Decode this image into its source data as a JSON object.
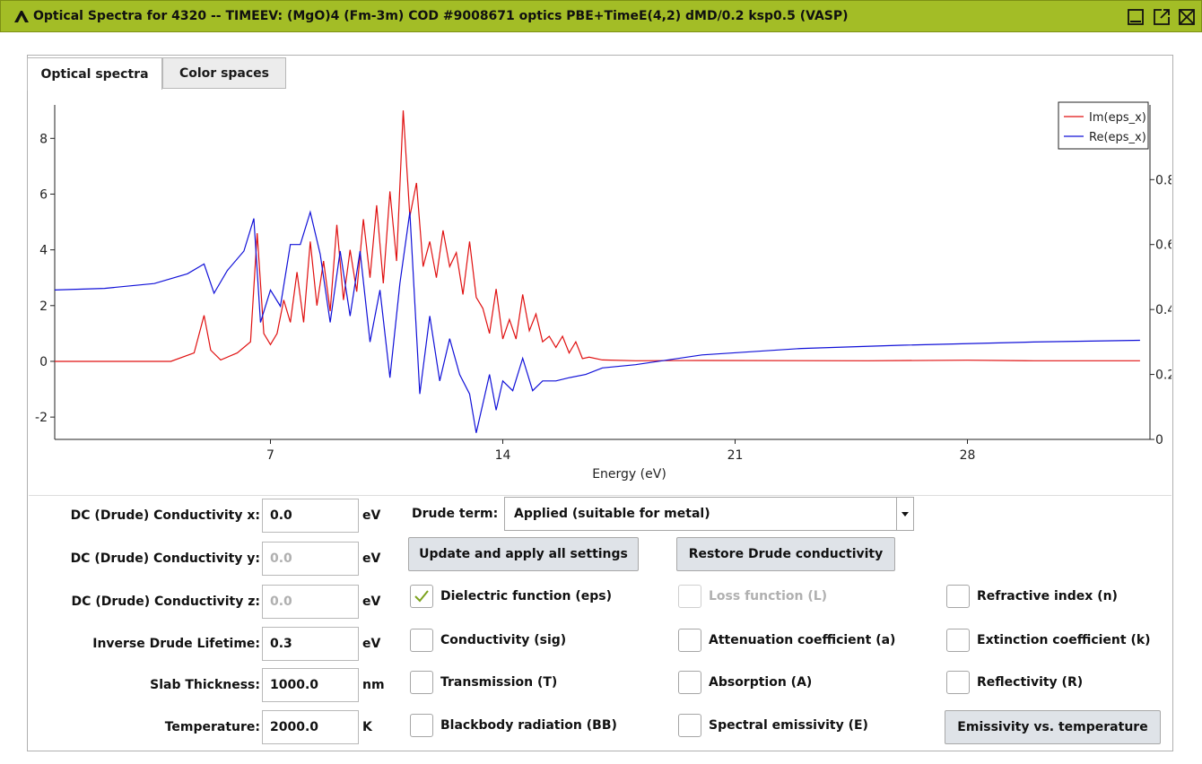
{
  "window": {
    "title": "Optical Spectra for 4320 -- TIMEEV: (MgO)4 (Fm-3m) COD #9008671 optics PBE+TimeE(4,2) dMD/0.2 ksp0.5 (VASP)",
    "accent": "#a3bd26",
    "controls": [
      "minimize-icon",
      "maximize-icon",
      "close-icon"
    ]
  },
  "tabs": [
    {
      "label": "Optical spectra",
      "active": true
    },
    {
      "label": "Color spaces",
      "active": false
    }
  ],
  "chart_data": {
    "type": "line",
    "xlabel": "Energy (eV)",
    "xlim": [
      0.5,
      33.5
    ],
    "x_ticks": [
      7,
      14,
      21,
      28
    ],
    "x_tick_labels": [
      "7",
      "14",
      "21",
      "28"
    ],
    "left_axis": {
      "ylim": [
        -2.8,
        9.2
      ],
      "ticks": [
        -2,
        0,
        2,
        4,
        6,
        8
      ],
      "tick_labels": [
        "-2",
        "0",
        "2",
        "4",
        "6",
        "8"
      ]
    },
    "right_axis": {
      "ylim": [
        0,
        1.03
      ],
      "ticks": [
        0,
        0.2,
        0.4,
        0.6,
        0.8
      ],
      "tick_labels": [
        "0",
        "0.2",
        "0.4",
        "0.6",
        "0.8"
      ]
    },
    "grid": false,
    "legend_position": "top-right",
    "series": [
      {
        "name": "Im(eps_x)",
        "color": "#e01010",
        "axis": "left",
        "x": [
          0.5,
          4.0,
          4.7,
          5.0,
          5.2,
          5.5,
          6.0,
          6.4,
          6.6,
          6.8,
          7.0,
          7.2,
          7.4,
          7.6,
          7.8,
          8.0,
          8.2,
          8.4,
          8.6,
          8.8,
          9.0,
          9.2,
          9.4,
          9.6,
          9.8,
          10.0,
          10.2,
          10.4,
          10.6,
          10.8,
          11.0,
          11.2,
          11.4,
          11.6,
          11.8,
          12.0,
          12.2,
          12.4,
          12.6,
          12.8,
          13.0,
          13.2,
          13.4,
          13.6,
          13.8,
          14.0,
          14.2,
          14.4,
          14.6,
          14.8,
          15.0,
          15.2,
          15.4,
          15.6,
          15.8,
          16.0,
          16.2,
          16.4,
          16.6,
          17.0,
          18.0,
          20.0,
          25.0,
          28.0,
          30.0,
          33.2
        ],
        "y": [
          0.0,
          0.0,
          0.3,
          1.65,
          0.4,
          0.05,
          0.3,
          0.7,
          4.6,
          1.0,
          0.6,
          1.0,
          2.2,
          1.4,
          3.2,
          1.4,
          4.3,
          2.0,
          3.6,
          1.8,
          4.9,
          2.2,
          4.0,
          2.5,
          5.1,
          3.0,
          5.6,
          2.8,
          6.1,
          3.6,
          9.0,
          5.2,
          6.4,
          3.4,
          4.3,
          3.0,
          4.7,
          3.4,
          3.9,
          2.4,
          4.3,
          2.3,
          1.9,
          1.0,
          2.6,
          0.8,
          1.5,
          0.8,
          2.4,
          1.1,
          1.7,
          0.7,
          0.9,
          0.5,
          0.9,
          0.3,
          0.7,
          0.1,
          0.15,
          0.05,
          0.02,
          0.03,
          0.02,
          0.04,
          0.02,
          0.02
        ]
      },
      {
        "name": "Re(eps_x)",
        "color": "#1010d8",
        "axis": "right",
        "x": [
          0.5,
          2.0,
          3.5,
          4.5,
          5.0,
          5.3,
          5.7,
          6.2,
          6.5,
          6.7,
          7.0,
          7.3,
          7.6,
          7.9,
          8.2,
          8.5,
          8.8,
          9.1,
          9.4,
          9.7,
          10.0,
          10.3,
          10.6,
          10.9,
          11.2,
          11.5,
          11.8,
          12.1,
          12.4,
          12.7,
          13.0,
          13.2,
          13.4,
          13.6,
          13.8,
          14.0,
          14.3,
          14.6,
          14.9,
          15.2,
          15.6,
          16.0,
          16.5,
          17.0,
          18.0,
          20.0,
          23.0,
          26.0,
          30.0,
          33.2
        ],
        "y": [
          0.46,
          0.465,
          0.48,
          0.51,
          0.54,
          0.45,
          0.52,
          0.58,
          0.68,
          0.36,
          0.46,
          0.41,
          0.6,
          0.6,
          0.7,
          0.57,
          0.36,
          0.58,
          0.38,
          0.58,
          0.3,
          0.46,
          0.19,
          0.48,
          0.7,
          0.14,
          0.38,
          0.18,
          0.31,
          0.2,
          0.14,
          0.02,
          0.11,
          0.2,
          0.09,
          0.18,
          0.15,
          0.25,
          0.15,
          0.18,
          0.18,
          0.19,
          0.2,
          0.22,
          0.23,
          0.26,
          0.28,
          0.29,
          0.3,
          0.305
        ]
      }
    ]
  },
  "settings": {
    "rows": [
      {
        "label": "DC (Drude) Conductivity x:",
        "value": "0.0",
        "unit": "eV",
        "disabled": false
      },
      {
        "label": "DC (Drude) Conductivity y:",
        "value": "0.0",
        "unit": "eV",
        "disabled": true
      },
      {
        "label": "DC (Drude) Conductivity z:",
        "value": "0.0",
        "unit": "eV",
        "disabled": true
      },
      {
        "label": "Inverse Drude Lifetime:",
        "value": "0.3",
        "unit": "eV",
        "disabled": false
      },
      {
        "label": "Slab Thickness:",
        "value": "1000.0",
        "unit": "nm",
        "disabled": false
      },
      {
        "label": "Temperature:",
        "value": "2000.0",
        "unit": "K",
        "disabled": false
      }
    ],
    "drude_label": "Drude term:",
    "drude_value": "Applied (suitable for metal)",
    "update_button": "Update and apply all settings",
    "restore_button": "Restore Drude conductivity",
    "emissivity_button": "Emissivity vs. temperature"
  },
  "checkboxes": [
    {
      "label": "Dielectric function (eps)",
      "checked": true,
      "disabled": false
    },
    {
      "label": "Loss function (L)",
      "checked": false,
      "disabled": true
    },
    {
      "label": "Refractive index (n)",
      "checked": false,
      "disabled": false
    },
    {
      "label": "Conductivity (sig)",
      "checked": false,
      "disabled": false
    },
    {
      "label": "Attenuation coefficient (a)",
      "checked": false,
      "disabled": false
    },
    {
      "label": "Extinction coefficient (k)",
      "checked": false,
      "disabled": false
    },
    {
      "label": "Transmission (T)",
      "checked": false,
      "disabled": false
    },
    {
      "label": "Absorption (A)",
      "checked": false,
      "disabled": false
    },
    {
      "label": "Reflectivity (R)",
      "checked": false,
      "disabled": false
    },
    {
      "label": "Blackbody radiation (BB)",
      "checked": false,
      "disabled": false
    },
    {
      "label": "Spectral emissivity (E)",
      "checked": false,
      "disabled": false
    }
  ]
}
